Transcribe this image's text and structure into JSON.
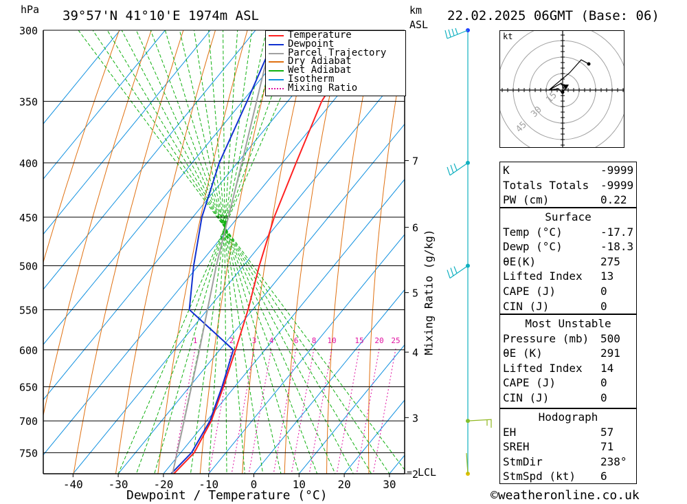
{
  "header": {
    "pressure_unit": "hPa",
    "location": "39°57'N  41°10'E  1974m  ASL",
    "height_unit_1": "km",
    "height_unit_2": "ASL",
    "datetime": "22.02.2025  06GMT  (Base: 06)"
  },
  "footer": {
    "copyright_symbol": "©",
    "credit": "weatheronline.co.uk"
  },
  "colors": {
    "temperature": "#ff2020",
    "dewpoint": "#1030d0",
    "parcel": "#a0a0a0",
    "dry_adiabat": "#e07010",
    "wet_adiabat": "#10b010",
    "isotherm": "#1090e0",
    "mixing_ratio": "#e010a0",
    "wind": "#10b0c0"
  },
  "chart_data": {
    "type": "line",
    "subtype": "skew-T log-P sounding",
    "xlabel": "Dewpoint / Temperature (°C)",
    "ylabel_pressure": "hPa",
    "ylabel_mixing": "Mixing Ratio (g/kg)",
    "x_ticks": [
      "-40",
      "-30",
      "-20",
      "-10",
      "0",
      "10",
      "20",
      "30"
    ],
    "x_tick_values": [
      -40,
      -30,
      -20,
      -10,
      0,
      10,
      20,
      30
    ],
    "pressure_levels": [
      300,
      350,
      400,
      450,
      500,
      550,
      600,
      650,
      700,
      750
    ],
    "pressure_labels": [
      "300",
      "350",
      "400",
      "450",
      "500",
      "550",
      "600",
      "650",
      "700",
      "750"
    ],
    "ylim_hpa": [
      785,
      300
    ],
    "km_labels": [
      {
        "p": 398,
        "label": "7"
      },
      {
        "p": 460,
        "label": "6"
      },
      {
        "p": 530,
        "label": "5"
      },
      {
        "p": 603,
        "label": "4"
      },
      {
        "p": 695,
        "label": "3"
      },
      {
        "p": 785,
        "label": "2"
      }
    ],
    "lcl_label": "LCL",
    "lcl_marker": "=",
    "mixing_ratio_values": [
      1,
      2,
      3,
      4,
      6,
      8,
      10,
      15,
      20,
      25
    ],
    "mixing_ratio_labels": [
      "1",
      "2",
      "3",
      "4",
      "6",
      "8",
      "10",
      "15",
      "20",
      "25"
    ],
    "legend": [
      "Temperature",
      "Dewpoint",
      "Parcel Trajectory",
      "Dry Adiabat",
      "Wet Adiabat",
      "Isotherm",
      "Mixing Ratio"
    ],
    "series": [
      {
        "name": "Temperature",
        "points": [
          [
            785,
            -17.7
          ],
          [
            750,
            -17.0
          ],
          [
            700,
            -19.0
          ],
          [
            650,
            -22.5
          ],
          [
            600,
            -26.5
          ],
          [
            550,
            -31.0
          ],
          [
            500,
            -36.5
          ],
          [
            450,
            -42.0
          ],
          [
            400,
            -47.0
          ],
          [
            350,
            -52.5
          ],
          [
            300,
            -55.5
          ]
        ]
      },
      {
        "name": "Dewpoint",
        "points": [
          [
            785,
            -18.3
          ],
          [
            750,
            -17.6
          ],
          [
            700,
            -19.3
          ],
          [
            650,
            -22.8
          ],
          [
            600,
            -27.0
          ],
          [
            550,
            -44.0
          ],
          [
            500,
            -51.0
          ],
          [
            450,
            -58.0
          ],
          [
            400,
            -64.0
          ],
          [
            350,
            -69.0
          ],
          [
            300,
            -75.0
          ]
        ]
      },
      {
        "name": "Parcel Trajectory",
        "points": [
          [
            785,
            -18.0
          ],
          [
            700,
            -25.0
          ],
          [
            600,
            -34.5
          ],
          [
            500,
            -46.0
          ],
          [
            400,
            -59.0
          ],
          [
            300,
            -76.0
          ]
        ]
      }
    ],
    "wind_barbs": [
      {
        "p": 300,
        "shape": "pennant-barbs"
      },
      {
        "p": 400,
        "shape": "barbs"
      },
      {
        "p": 500,
        "shape": "barbs"
      },
      {
        "p": 700,
        "shape": "flag"
      },
      {
        "p": 785,
        "shape": "surface"
      }
    ]
  },
  "hodograph": {
    "unit": "kt",
    "ring_labels": [
      "15",
      "30",
      "45"
    ]
  },
  "indices": {
    "k": {
      "label": "K",
      "value": "-9999"
    },
    "tt": {
      "label": "Totals Totals",
      "value": "-9999"
    },
    "pw": {
      "label": "PW (cm)",
      "value": "0.22"
    }
  },
  "surface": {
    "title": "Surface",
    "temp": {
      "label": "Temp (°C)",
      "value": "-17.7"
    },
    "dewp": {
      "label": "Dewp (°C)",
      "value": "-18.3"
    },
    "theta_e": {
      "label": "θE(K)",
      "value": "275"
    },
    "li": {
      "label": "Lifted Index",
      "value": "13"
    },
    "cape": {
      "label": "CAPE (J)",
      "value": "0"
    },
    "cin": {
      "label": "CIN (J)",
      "value": "0"
    }
  },
  "most_unstable": {
    "title": "Most Unstable",
    "pressure": {
      "label": "Pressure (mb)",
      "value": "500"
    },
    "theta_e": {
      "label": "θE (K)",
      "value": "291"
    },
    "li": {
      "label": "Lifted Index",
      "value": "14"
    },
    "cape": {
      "label": "CAPE (J)",
      "value": "0"
    },
    "cin": {
      "label": "CIN (J)",
      "value": "0"
    }
  },
  "hodo_table": {
    "title": "Hodograph",
    "eh": {
      "label": "EH",
      "value": "57"
    },
    "sreh": {
      "label": "SREH",
      "value": "71"
    },
    "stmdir": {
      "label": "StmDir",
      "value": "238°"
    },
    "stmspd": {
      "label": "StmSpd (kt)",
      "value": "6"
    }
  }
}
